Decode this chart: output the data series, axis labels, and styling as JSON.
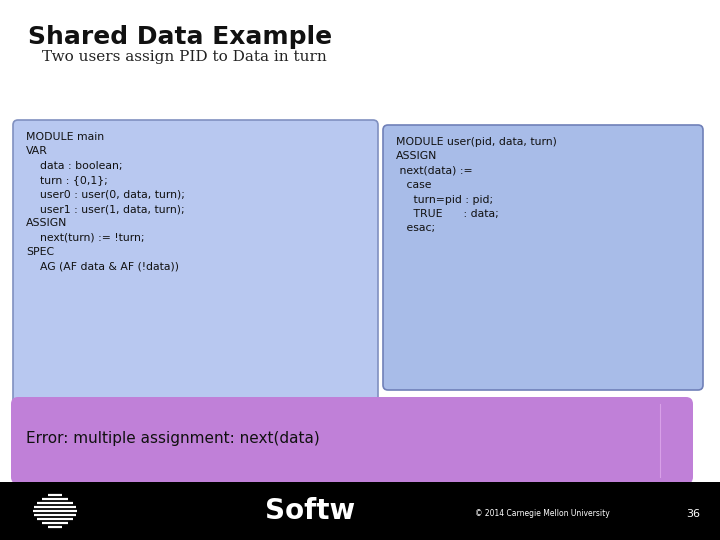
{
  "title": "Shared Data Example",
  "subtitle": "Two users assign PID to Data in turn",
  "bg_color": "#ffffff",
  "left_box_color": "#b8c8ee",
  "right_box_color": "#a8b8e8",
  "error_box_color": "#c080d8",
  "left_code": "MODULE main\nVAR\n    data : boolean;\n    turn : {0,1};\n    user0 : user(0, data, turn);\n    user1 : user(1, data, turn);\nASSIGN\n    next(turn) := !turn;\nSPEC\n    AG (AF data & AF (!data))",
  "right_code": "MODULE user(pid, data, turn)\nASSIGN\n next(data) :=\n   case\n     turn=pid : pid;\n     TRUE      : data;\n   esac;",
  "error_text": "Error: multiple assignment: next(data)",
  "footer_text": "© 2014 Carnegie Mellon University",
  "slide_number": "36",
  "softw_text": "Softw",
  "arrow_color": "#c080d8",
  "title_fontsize": 18,
  "subtitle_fontsize": 11,
  "code_fontsize": 7.8,
  "error_fontsize": 11
}
